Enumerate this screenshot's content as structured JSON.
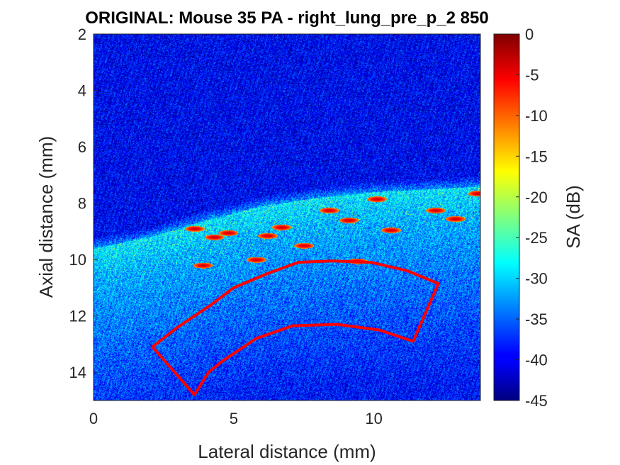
{
  "chart_data": {
    "type": "heatmap",
    "title": "ORIGINAL: Mouse 35 PA -   right_lung_pre_p_2 850",
    "xlabel": "Lateral distance (mm)",
    "ylabel": "Axial distance (mm)",
    "xlim": [
      0,
      13.8
    ],
    "ylim": [
      2,
      15
    ],
    "y_direction": "reversed",
    "xticks": [
      0,
      5,
      10
    ],
    "yticks": [
      2,
      4,
      6,
      8,
      10,
      12,
      14
    ],
    "grid": false,
    "colormap": "jet",
    "colorbar": {
      "label": "SA (dB)",
      "range": [
        -45,
        0
      ],
      "ticks": [
        0,
        -5,
        -10,
        -15,
        -20,
        -25,
        -30,
        -35,
        -40,
        -45
      ]
    },
    "roi": {
      "color": "#ff0000",
      "points_mm": [
        [
          2.1,
          13.1
        ],
        [
          3.0,
          12.4
        ],
        [
          4.2,
          11.6
        ],
        [
          5.0,
          11.0
        ],
        [
          6.2,
          10.5
        ],
        [
          7.3,
          10.1
        ],
        [
          8.5,
          10.05
        ],
        [
          9.9,
          10.1
        ],
        [
          11.2,
          10.4
        ],
        [
          12.3,
          10.85
        ],
        [
          11.4,
          12.9
        ],
        [
          10.2,
          12.5
        ],
        [
          8.7,
          12.3
        ],
        [
          7.1,
          12.35
        ],
        [
          5.8,
          12.8
        ],
        [
          4.6,
          13.6
        ],
        [
          4.1,
          14.0
        ],
        [
          3.6,
          14.8
        ],
        [
          2.1,
          13.1
        ]
      ]
    },
    "image_features": {
      "skin_boundary_mm": [
        [
          0,
          9.6
        ],
        [
          2,
          9.2
        ],
        [
          4,
          8.6
        ],
        [
          6,
          8.1
        ],
        [
          8,
          7.8
        ],
        [
          10,
          7.6
        ],
        [
          12,
          7.5
        ],
        [
          13.8,
          7.4
        ]
      ],
      "bright_spots_mm": [
        [
          10.1,
          7.85
        ],
        [
          13.7,
          7.65
        ],
        [
          12.2,
          8.25
        ],
        [
          9.1,
          8.6
        ],
        [
          3.6,
          8.9
        ],
        [
          4.3,
          9.2
        ],
        [
          4.8,
          9.05
        ],
        [
          6.2,
          9.15
        ],
        [
          7.5,
          9.5
        ],
        [
          10.6,
          8.95
        ],
        [
          12.9,
          8.55
        ],
        [
          8.4,
          8.25
        ],
        [
          5.8,
          10.0
        ],
        [
          9.4,
          10.05
        ],
        [
          3.9,
          10.2
        ],
        [
          6.7,
          8.85
        ]
      ]
    }
  }
}
